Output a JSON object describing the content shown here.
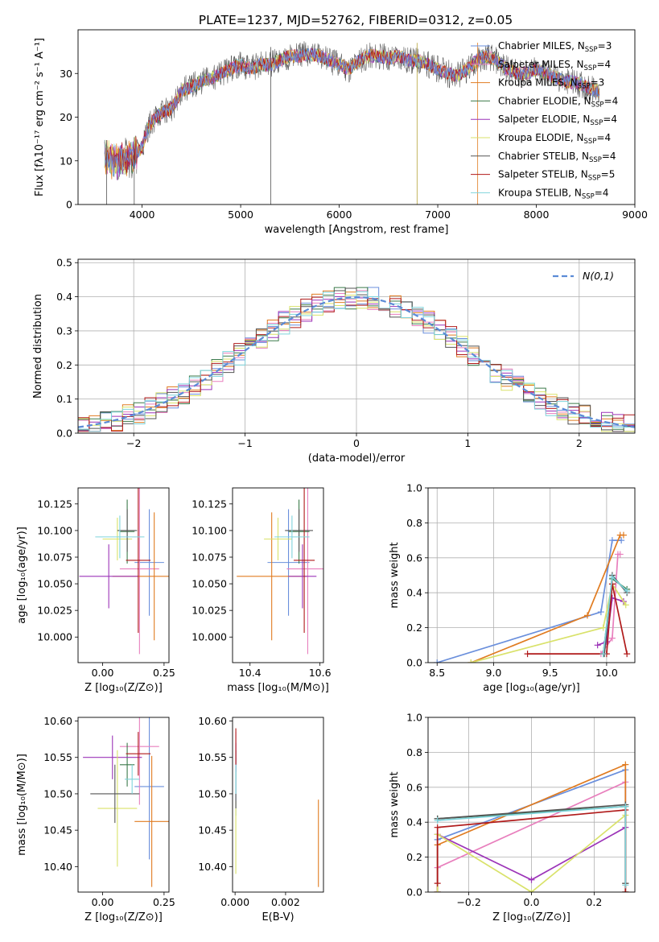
{
  "figure_title": "PLATE=1237, MJD=52762, FIBERID=0312, z=0.05",
  "series_colors": [
    "#6a8fdc",
    "#e87fbd",
    "#e07b20",
    "#3b7a4a",
    "#9c34b8",
    "#d9e26a",
    "#555555",
    "#b01a1a",
    "#7fd4dc"
  ],
  "chart_data": [
    {
      "id": "spectrum",
      "type": "line",
      "title": "PLATE=1237, MJD=52762, FIBERID=0312, z=0.05",
      "xlabel": "wavelength [Angstrom, rest frame]",
      "ylabel": "Flux [fλ10⁻¹⁷ erg cm⁻² s⁻¹ A⁻¹]",
      "xlim": [
        3350,
        9000
      ],
      "ylim": [
        0,
        40
      ],
      "xticks": [
        4000,
        5000,
        6000,
        7000,
        8000,
        9000
      ],
      "yticks": [
        0,
        10,
        20,
        30
      ],
      "grid": false,
      "legend_position": "upper-right",
      "legend": [
        "Chabrier MILES, N_SSP=3",
        "Salpeter MILES, N_SSP=4",
        "Kroupa MILES, N_SSP=3",
        "Chabrier ELODIE, N_SSP=4",
        "Salpeter ELODIE, N_SSP=4",
        "Kroupa ELODIE, N_SSP=4",
        "Chabrier STELIB, N_SSP=4",
        "Salpeter STELIB, N_SSP=5",
        "Kroupa STELIB, N_SSP=4"
      ],
      "continuum": [
        [
          3620,
          11
        ],
        [
          3700,
          10
        ],
        [
          3800,
          10
        ],
        [
          3900,
          11
        ],
        [
          4000,
          13
        ],
        [
          4050,
          17
        ],
        [
          4100,
          19
        ],
        [
          4200,
          21
        ],
        [
          4300,
          22
        ],
        [
          4400,
          26
        ],
        [
          4500,
          27
        ],
        [
          4600,
          28
        ],
        [
          4700,
          29
        ],
        [
          4800,
          30
        ],
        [
          4900,
          31
        ],
        [
          5000,
          32
        ],
        [
          5100,
          31
        ],
        [
          5200,
          32
        ],
        [
          5300,
          32
        ],
        [
          5400,
          33
        ],
        [
          5500,
          34
        ],
        [
          5600,
          34
        ],
        [
          5700,
          34.5
        ],
        [
          5800,
          34
        ],
        [
          5900,
          33
        ],
        [
          6000,
          32
        ],
        [
          6100,
          31
        ],
        [
          6200,
          33
        ],
        [
          6300,
          34
        ],
        [
          6400,
          34
        ],
        [
          6500,
          33.5
        ],
        [
          6600,
          34
        ],
        [
          6700,
          33
        ],
        [
          6800,
          33
        ],
        [
          6900,
          32
        ],
        [
          7000,
          31
        ],
        [
          7100,
          30
        ],
        [
          7200,
          29.5
        ],
        [
          7300,
          31
        ],
        [
          7400,
          33
        ],
        [
          7500,
          34
        ],
        [
          7600,
          33
        ],
        [
          7700,
          31
        ],
        [
          7800,
          30
        ],
        [
          7900,
          30
        ],
        [
          8000,
          31
        ],
        [
          8100,
          30
        ],
        [
          8200,
          29
        ],
        [
          8300,
          28
        ],
        [
          8400,
          28
        ],
        [
          8500,
          27
        ],
        [
          8600,
          26
        ],
        [
          8640,
          26
        ]
      ],
      "spikes": [
        [
          5305,
          0
        ],
        [
          6790,
          0
        ],
        [
          7405,
          0
        ],
        [
          3920,
          0
        ],
        [
          3640,
          0
        ]
      ]
    },
    {
      "id": "residuals",
      "type": "histogram",
      "xlabel": "(data-model)/error",
      "ylabel": "Normed distribution",
      "xlim": [
        -2.5,
        2.5
      ],
      "ylim": [
        0,
        0.51
      ],
      "xticks": [
        -2,
        -1,
        0,
        1,
        2
      ],
      "yticks": [
        0.0,
        0.1,
        0.2,
        0.3,
        0.4,
        0.5
      ],
      "grid": true,
      "legend": [
        "N(0,1)"
      ],
      "legend_position": "upper-right",
      "bin_width": 0.1,
      "bin_start": -2.5
    },
    {
      "id": "age_vs_Z",
      "type": "errorbar",
      "xlabel": "Z [log₁₀(Z/Z⊙)]",
      "ylabel": "age  [log₁₀(age/yr)]",
      "xlim": [
        -0.1,
        0.27
      ],
      "ylim": [
        9.976,
        10.14
      ],
      "xticks": [
        0.0,
        0.25
      ],
      "xticklabels": [
        "0.00",
        "0.25"
      ],
      "yticks": [
        10.0,
        10.025,
        10.05,
        10.075,
        10.1,
        10.125
      ],
      "yticklabels": [
        "10.000",
        "10.025",
        "10.050",
        "10.075",
        "10.100",
        "10.125"
      ],
      "points": [
        {
          "x": 0.19,
          "y": 10.07,
          "xerr": 0.06,
          "yerr": 0.05
        },
        {
          "x": 0.15,
          "y": 10.064,
          "xerr": 0.08,
          "yerr": 0.08
        },
        {
          "x": 0.21,
          "y": 10.057,
          "xerr": 0.17,
          "yerr": 0.06
        },
        {
          "x": 0.1,
          "y": 10.099,
          "xerr": 0.03,
          "yerr": 0.03
        },
        {
          "x": 0.025,
          "y": 10.057,
          "xerr": 0.12,
          "yerr": 0.03
        },
        {
          "x": 0.06,
          "y": 10.092,
          "xerr": 0.06,
          "yerr": 0.02
        },
        {
          "x": 0.1,
          "y": 10.1,
          "xerr": 0.04,
          "yerr": 0.02
        },
        {
          "x": 0.145,
          "y": 10.072,
          "xerr": 0.05,
          "yerr": 0.068
        },
        {
          "x": 0.07,
          "y": 10.094,
          "xerr": 0.1,
          "yerr": 0.02
        }
      ]
    },
    {
      "id": "age_vs_mass",
      "type": "errorbar",
      "xlabel": "mass [log₁₀(M/M⊙)]",
      "ylabel": "",
      "xlim": [
        10.35,
        10.61
      ],
      "ylim": [
        9.976,
        10.14
      ],
      "xticks": [
        10.4,
        10.6
      ],
      "xticklabels": [
        "10.4",
        "10.6"
      ],
      "yticks": [
        10.0,
        10.025,
        10.05,
        10.075,
        10.1,
        10.125
      ],
      "yticklabels": [
        "10.000",
        "10.025",
        "10.050",
        "10.075",
        "10.100",
        "10.125"
      ],
      "points": [
        {
          "x": 10.51,
          "y": 10.07,
          "xerr": 0.06,
          "yerr": 0.05
        },
        {
          "x": 10.565,
          "y": 10.064,
          "xerr": 0.06,
          "yerr": 0.08
        },
        {
          "x": 10.462,
          "y": 10.057,
          "xerr": 0.1,
          "yerr": 0.06
        },
        {
          "x": 10.54,
          "y": 10.099,
          "xerr": 0.03,
          "yerr": 0.03
        },
        {
          "x": 10.55,
          "y": 10.057,
          "xerr": 0.04,
          "yerr": 0.03
        },
        {
          "x": 10.48,
          "y": 10.092,
          "xerr": 0.04,
          "yerr": 0.02
        },
        {
          "x": 10.54,
          "y": 10.1,
          "xerr": 0.04,
          "yerr": 0.02
        },
        {
          "x": 10.555,
          "y": 10.072,
          "xerr": 0.03,
          "yerr": 0.068
        },
        {
          "x": 10.52,
          "y": 10.094,
          "xerr": 0.05,
          "yerr": 0.02
        }
      ]
    },
    {
      "id": "weight_vs_age",
      "type": "line",
      "xlabel": "age  [log₁₀(age/yr)]",
      "ylabel": "mass weight",
      "xlim": [
        8.42,
        10.25
      ],
      "ylim": [
        0.0,
        1.0
      ],
      "xticks": [
        8.5,
        9.0,
        9.5,
        10.0
      ],
      "xticklabels": [
        "8.5",
        "9.0",
        "9.5",
        "10.0"
      ],
      "yticks": [
        0.0,
        0.2,
        0.4,
        0.6,
        0.8,
        1.0
      ],
      "yticklabels": [
        "0.0",
        "0.2",
        "0.4",
        "0.6",
        "0.8",
        "1.0"
      ],
      "grid": true,
      "series": [
        {
          "x": [
            8.5,
            9.95,
            10.05,
            10.13
          ],
          "y": [
            0.0,
            0.29,
            0.7,
            0.7
          ]
        },
        {
          "x": [
            9.95,
            10.05,
            10.1,
            10.12
          ],
          "y": [
            0.05,
            0.14,
            0.62,
            0.62
          ]
        },
        {
          "x": [
            8.8,
            9.83,
            10.12,
            10.15
          ],
          "y": [
            0.0,
            0.27,
            0.73,
            0.73
          ]
        },
        {
          "x": [
            9.97,
            10.05,
            10.18
          ],
          "y": [
            0.05,
            0.48,
            0.42
          ]
        },
        {
          "x": [
            9.92,
            10.0,
            10.05,
            10.15
          ],
          "y": [
            0.1,
            0.12,
            0.37,
            0.35
          ]
        },
        {
          "x": [
            8.8,
            9.97,
            10.05,
            10.17
          ],
          "y": [
            0.0,
            0.2,
            0.45,
            0.33
          ]
        },
        {
          "x": [
            9.98,
            10.05,
            10.18
          ],
          "y": [
            0.05,
            0.5,
            0.4
          ]
        },
        {
          "x": [
            9.3,
            10.0,
            10.05,
            10.18
          ],
          "y": [
            0.05,
            0.05,
            0.45,
            0.05
          ]
        },
        {
          "x": [
            9.97,
            10.05,
            10.18
          ],
          "y": [
            0.05,
            0.49,
            0.41
          ]
        }
      ]
    },
    {
      "id": "mass_vs_Z",
      "type": "errorbar",
      "xlabel": "Z [log₁₀(Z/Z⊙)]",
      "ylabel": "mass [log₁₀(M/M⊙)]",
      "xlim": [
        -0.1,
        0.27
      ],
      "ylim": [
        10.365,
        10.605
      ],
      "xticks": [
        0.0,
        0.25
      ],
      "xticklabels": [
        "0.00",
        "0.25"
      ],
      "yticks": [
        10.4,
        10.45,
        10.5,
        10.55,
        10.6
      ],
      "yticklabels": [
        "10.40",
        "10.45",
        "10.50",
        "10.55",
        "10.60"
      ],
      "points": [
        {
          "x": 0.19,
          "y": 10.51,
          "xerr": 0.06,
          "yerr": 0.1
        },
        {
          "x": 0.15,
          "y": 10.565,
          "xerr": 0.08,
          "yerr": 0.08
        },
        {
          "x": 0.2,
          "y": 10.462,
          "xerr": 0.07,
          "yerr": 0.09
        },
        {
          "x": 0.1,
          "y": 10.54,
          "xerr": 0.03,
          "yerr": 0.03
        },
        {
          "x": 0.04,
          "y": 10.55,
          "xerr": 0.12,
          "yerr": 0.03
        },
        {
          "x": 0.06,
          "y": 10.48,
          "xerr": 0.08,
          "yerr": 0.08
        },
        {
          "x": 0.05,
          "y": 10.5,
          "xerr": 0.1,
          "yerr": 0.04
        },
        {
          "x": 0.145,
          "y": 10.555,
          "xerr": 0.05,
          "yerr": 0.03
        },
        {
          "x": 0.12,
          "y": 10.52,
          "xerr": 0.03,
          "yerr": 0.02
        }
      ]
    },
    {
      "id": "mass_vs_EBV",
      "type": "errorbar",
      "xlabel": "E(B-V)",
      "ylabel": "",
      "xlim": [
        -0.0001,
        0.0035
      ],
      "ylim": [
        10.365,
        10.605
      ],
      "xticks": [
        0.0,
        0.002
      ],
      "xticklabels": [
        "0.000",
        "0.002"
      ],
      "yticks": [
        10.4,
        10.45,
        10.5,
        10.55,
        10.6
      ],
      "yticklabels": [
        "10.40",
        "10.45",
        "10.50",
        "10.55",
        "10.60"
      ],
      "points": [
        {
          "x": 3e-05,
          "y": 10.51,
          "xerr": 0,
          "yerr": 0.04
        },
        {
          "x": 3e-05,
          "y": 10.565,
          "xerr": 0,
          "yerr": 0.02
        },
        {
          "x": 0.0033,
          "y": 10.432,
          "xerr": 0,
          "yerr": 0.06
        },
        {
          "x": 3e-05,
          "y": 10.54,
          "xerr": 0,
          "yerr": 0.02
        },
        {
          "x": 3e-05,
          "y": 10.55,
          "xerr": 0,
          "yerr": 0.02
        },
        {
          "x": 3e-05,
          "y": 10.44,
          "xerr": 0,
          "yerr": 0.05
        },
        {
          "x": 3e-05,
          "y": 10.5,
          "xerr": 0,
          "yerr": 0.02
        },
        {
          "x": 3e-05,
          "y": 10.565,
          "xerr": 0,
          "yerr": 0.025
        },
        {
          "x": 3e-05,
          "y": 10.52,
          "xerr": 0,
          "yerr": 0.02
        }
      ]
    },
    {
      "id": "weight_vs_Z",
      "type": "line",
      "xlabel": "Z [log₁₀(Z/Z⊙)]",
      "ylabel": "mass weight",
      "xlim": [
        -0.33,
        0.33
      ],
      "ylim": [
        0.0,
        1.0
      ],
      "xticks": [
        -0.2,
        0.0,
        0.2
      ],
      "xticklabels": [
        "−0.2",
        "0.0",
        "0.2"
      ],
      "yticks": [
        0.0,
        0.2,
        0.4,
        0.6,
        0.8,
        1.0
      ],
      "yticklabels": [
        "0.0",
        "0.2",
        "0.4",
        "0.6",
        "0.8",
        "1.0"
      ],
      "grid": true,
      "series": [
        {
          "x": [
            -0.3,
            -0.3,
            0.3,
            0.3
          ],
          "y": [
            0.0,
            0.3,
            0.7,
            0.0
          ]
        },
        {
          "x": [
            -0.3,
            -0.3,
            0.3,
            0.3
          ],
          "y": [
            0.0,
            0.14,
            0.63,
            0.05
          ]
        },
        {
          "x": [
            -0.3,
            -0.3,
            0.3,
            0.3
          ],
          "y": [
            0.0,
            0.27,
            0.73,
            0.0
          ]
        },
        {
          "x": [
            -0.3,
            0.3,
            0.3
          ],
          "y": [
            0.42,
            0.49,
            0.05
          ]
        },
        {
          "x": [
            -0.3,
            -0.3,
            0.0,
            0.3,
            0.3
          ],
          "y": [
            0.0,
            0.33,
            0.07,
            0.37,
            0.05
          ]
        },
        {
          "x": [
            -0.3,
            -0.3,
            0.0,
            0.3,
            0.3
          ],
          "y": [
            0.0,
            0.33,
            0.0,
            0.44,
            0.05
          ]
        },
        {
          "x": [
            -0.3,
            0.3,
            0.3
          ],
          "y": [
            0.42,
            0.5,
            0.05
          ]
        },
        {
          "x": [
            -0.3,
            -0.3,
            0.3,
            0.3
          ],
          "y": [
            0.05,
            0.37,
            0.47,
            0.0
          ]
        },
        {
          "x": [
            -0.3,
            0.3,
            0.3
          ],
          "y": [
            0.41,
            0.49,
            0.04
          ]
        }
      ]
    }
  ]
}
